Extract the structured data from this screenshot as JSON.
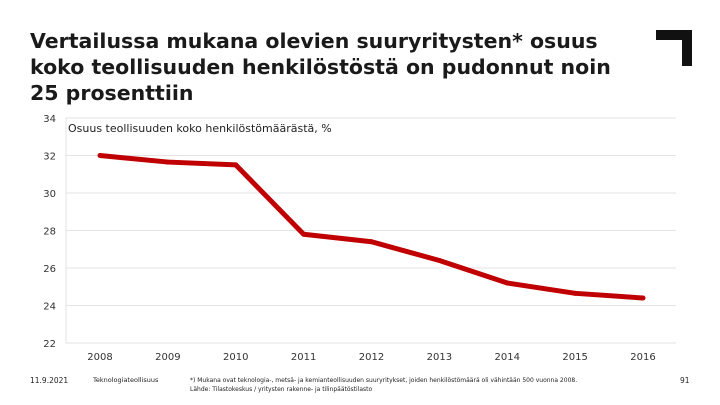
{
  "slide": {
    "title": "Vertailussa mukana olevien suuryritysten* osuus koko teollisuuden henkilöstöstä on pudonnut noin 25 prosenttiin",
    "date": "11.9.2021",
    "source": "Teknologiateollisuus",
    "footnote_line1": "*) Mukana ovat teknologia-, metsä- ja kemianteollisuuden suuryritykset, joiden henkilöstömäärä oli vähintään 500 vuonna 2008.",
    "footnote_line2": "Lähde: Tilastokeskus / yritysten rakenne- ja tilinpäätöstilasto",
    "page_number": "91",
    "logo_icon": "corner-bracket-logo-icon"
  },
  "chart_data": {
    "type": "line",
    "title": "Osuus teollisuuden koko henkilöstömäärästä, %",
    "xlabel": "",
    "ylabel": "",
    "x": [
      "2008",
      "2009",
      "2010",
      "2011",
      "2012",
      "2013",
      "2014",
      "2015",
      "2016"
    ],
    "series": [
      {
        "values": [
          32.0,
          31.65,
          31.5,
          27.8,
          27.4,
          26.4,
          25.2,
          24.65,
          24.4
        ],
        "color": "#c00000"
      }
    ],
    "yticks": [
      "22",
      "24",
      "26",
      "28",
      "30",
      "32",
      "34"
    ],
    "ylim": [
      22,
      34
    ],
    "grid": true,
    "gridline_color": "#e3e3e3"
  }
}
